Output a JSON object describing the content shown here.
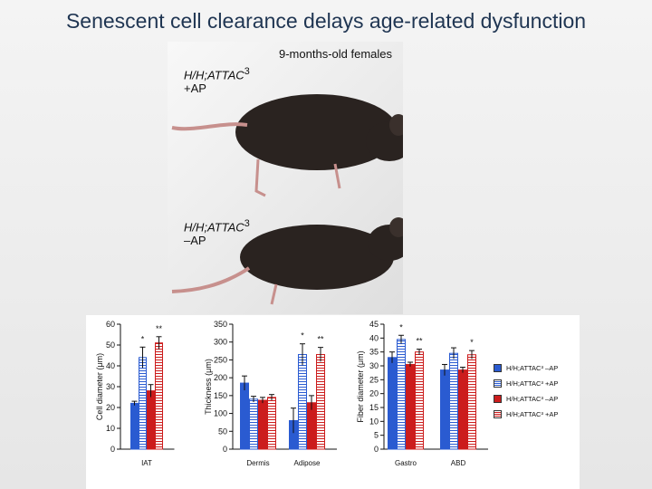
{
  "title": "Senescent cell clearance delays age-related dysfunction",
  "photo": {
    "caption": "9-months-old females",
    "top_mouse": {
      "genotype": "H/H;ATTAC",
      "sup": "3",
      "treatment": "+AP"
    },
    "bottom_mouse": {
      "genotype": "H/H;ATTAC",
      "sup": "3",
      "treatment": "–AP"
    }
  },
  "colors": {
    "blue": "#2a5bd1",
    "red": "#cc1c1c",
    "error": "#111111"
  },
  "legend": [
    {
      "label": "H/H;ATTAC³ –AP",
      "style": "blue"
    },
    {
      "label": "H/H;ATTAC³ +AP",
      "style": "blue-hatch"
    },
    {
      "label": "H/H;ATTAC³ –AP",
      "style": "red"
    },
    {
      "label": "H/H;ATTAC³ +AP",
      "style": "red-hatch"
    }
  ],
  "chart_data": [
    {
      "type": "bar",
      "ylabel": "Cell diameter (μm)",
      "ylim": [
        0,
        60
      ],
      "yticks": [
        0,
        10,
        20,
        30,
        40,
        50,
        60
      ],
      "categories": [
        "IAT"
      ],
      "series": [
        {
          "style": "blue",
          "values": [
            22
          ],
          "err": [
            1
          ]
        },
        {
          "style": "blue-hatch",
          "values": [
            44
          ],
          "err": [
            5
          ]
        },
        {
          "style": "red",
          "values": [
            28
          ],
          "err": [
            3
          ]
        },
        {
          "style": "red-hatch",
          "values": [
            51
          ],
          "err": [
            3
          ]
        }
      ],
      "annotations": [
        {
          "category": 0,
          "text": "*",
          "series": 1
        },
        {
          "category": 0,
          "text": "**",
          "series": 3
        }
      ]
    },
    {
      "type": "bar",
      "ylabel": "Thickness (μm)",
      "ylim": [
        0,
        350
      ],
      "yticks": [
        0,
        50,
        100,
        150,
        200,
        250,
        300,
        350
      ],
      "categories": [
        "Dermis",
        "Adipose"
      ],
      "series": [
        {
          "style": "blue",
          "values": [
            185,
            80
          ],
          "err": [
            20,
            35
          ]
        },
        {
          "style": "blue-hatch",
          "values": [
            140,
            265
          ],
          "err": [
            8,
            30
          ]
        },
        {
          "style": "red",
          "values": [
            137,
            130
          ],
          "err": [
            8,
            20
          ]
        },
        {
          "style": "red-hatch",
          "values": [
            145,
            265
          ],
          "err": [
            8,
            20
          ]
        }
      ],
      "annotations": [
        {
          "category": 1,
          "text": "*",
          "series": 1
        },
        {
          "category": 1,
          "text": "**",
          "series": 3
        }
      ]
    },
    {
      "type": "bar",
      "ylabel": "Fiber diameter (μm)",
      "ylim": [
        0,
        45
      ],
      "yticks": [
        0,
        5,
        10,
        15,
        20,
        25,
        30,
        35,
        40,
        45
      ],
      "categories": [
        "Gastro",
        "ABD"
      ],
      "series": [
        {
          "style": "blue",
          "values": [
            33,
            28.5
          ],
          "err": [
            2,
            2
          ]
        },
        {
          "style": "blue-hatch",
          "values": [
            39.5,
            34.5
          ],
          "err": [
            1.5,
            2
          ]
        },
        {
          "style": "red",
          "values": [
            30.5,
            28.5
          ],
          "err": [
            0.8,
            1
          ]
        },
        {
          "style": "red-hatch",
          "values": [
            35,
            34
          ],
          "err": [
            1,
            1.5
          ]
        }
      ],
      "annotations": [
        {
          "category": 0,
          "text": "*",
          "series": 1
        },
        {
          "category": 0,
          "text": "**",
          "series": 3
        },
        {
          "category": 1,
          "text": "*",
          "series": 3
        }
      ]
    }
  ]
}
